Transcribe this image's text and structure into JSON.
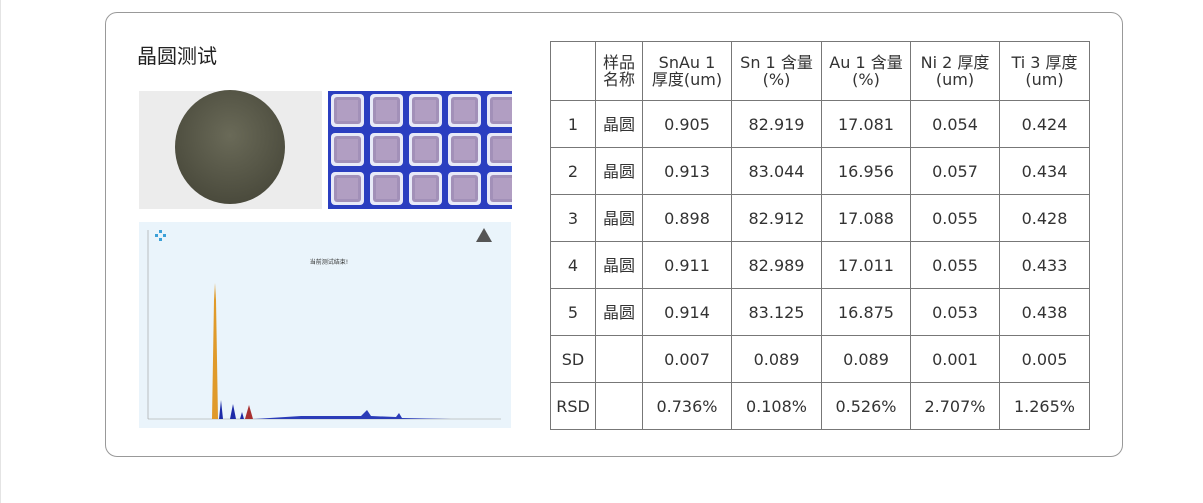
{
  "title": "晶圆测试",
  "spectrum": {
    "caption": "当前测试结束!"
  },
  "table": {
    "header": [
      null,
      [
        "样品",
        "名称"
      ],
      [
        "SnAu 1",
        "厚度(um)"
      ],
      [
        "Sn 1 含量",
        "(%)"
      ],
      [
        "Au 1 含量",
        "(%)"
      ],
      [
        "Ni 2 厚度",
        "(um)"
      ],
      [
        "Ti 3 厚度",
        "(um)"
      ]
    ],
    "rows": [
      [
        "1",
        "晶圆",
        "0.905",
        "82.919",
        "17.081",
        "0.054",
        "0.424"
      ],
      [
        "2",
        "晶圆",
        "0.913",
        "83.044",
        "16.956",
        "0.057",
        "0.434"
      ],
      [
        "3",
        "晶圆",
        "0.898",
        "82.912",
        "17.088",
        "0.055",
        "0.428"
      ],
      [
        "4",
        "晶圆",
        "0.911",
        "82.989",
        "17.011",
        "0.055",
        "0.433"
      ],
      [
        "5",
        "晶圆",
        "0.914",
        "83.125",
        "16.875",
        "0.053",
        "0.438"
      ],
      [
        "SD",
        null,
        "0.007",
        "0.089",
        "0.089",
        "0.001",
        "0.005"
      ],
      [
        "RSD",
        null,
        "0.736%",
        "0.108%",
        "0.526%",
        "2.707%",
        "1.265%"
      ]
    ]
  }
}
